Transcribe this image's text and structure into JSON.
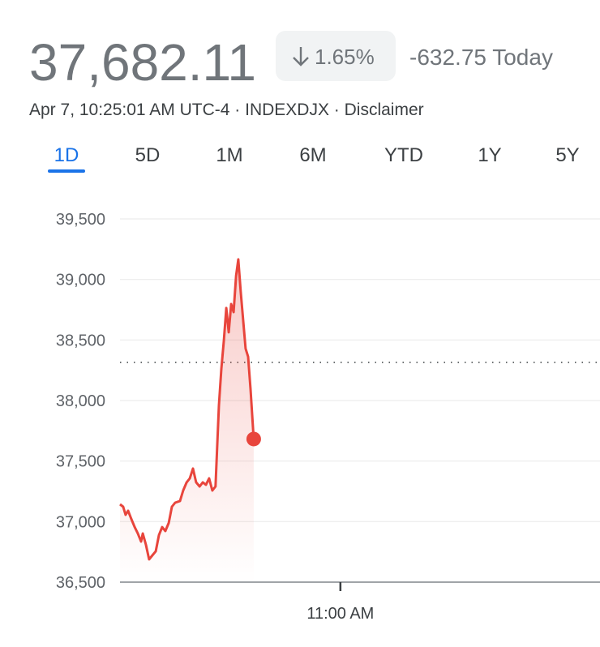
{
  "header": {
    "price": "37,682.11",
    "change_percent": "1.65%",
    "change_today": "-632.75 Today",
    "info": "Apr 7, 10:25:01 AM UTC-4 · INDEXDJX · Disclaimer"
  },
  "tabs": {
    "items": [
      "1D",
      "5D",
      "1M",
      "6M",
      "YTD",
      "1Y",
      "5Y"
    ],
    "selected": 0
  },
  "chart_data": {
    "type": "line",
    "color": "#e8453c",
    "x": [
      570,
      571.3,
      572.3,
      573.3,
      574.6,
      576,
      577.3,
      578.6,
      579.3,
      580.6,
      581.9,
      583.2,
      584.6,
      585.9,
      587.2,
      588.5,
      589.9,
      591.2,
      592.5,
      594.5,
      595.8,
      597.2,
      598.5,
      599.8,
      601.1,
      602.5,
      603.8,
      605.1,
      606.4,
      607.7,
      609,
      610.4,
      611.4,
      612.4,
      613.4,
      614.4,
      615.4,
      616.4,
      617.4,
      618.3,
      619.3,
      620.3,
      621.3,
      622.3,
      623.3,
      624.6
    ],
    "values": [
      37143,
      37123,
      37056,
      37090,
      37022,
      36955,
      36902,
      36835,
      36902,
      36808,
      36688,
      36721,
      36755,
      36888,
      36955,
      36922,
      36989,
      37123,
      37156,
      37170,
      37257,
      37324,
      37357,
      37438,
      37324,
      37290,
      37324,
      37304,
      37357,
      37257,
      37290,
      37960,
      38262,
      38496,
      38764,
      38563,
      38797,
      38730,
      39032,
      39166,
      38898,
      38663,
      38429,
      38362,
      38094,
      37682.11
    ],
    "previous_close": 38314.86,
    "xlim": [
      570,
      766
    ],
    "xticks": [
      {
        "value": 660,
        "label": "11:00 AM"
      }
    ],
    "ylim": [
      36500,
      39500
    ],
    "yticks": [
      {
        "value": 36500,
        "label": "36,500"
      },
      {
        "value": 37000,
        "label": "37,000"
      },
      {
        "value": 37500,
        "label": "37,500"
      },
      {
        "value": 38000,
        "label": "38,000"
      },
      {
        "value": 38500,
        "label": "38,500"
      },
      {
        "value": 39000,
        "label": "39,000"
      },
      {
        "value": 39500,
        "label": "39,500"
      }
    ],
    "grid": true
  }
}
